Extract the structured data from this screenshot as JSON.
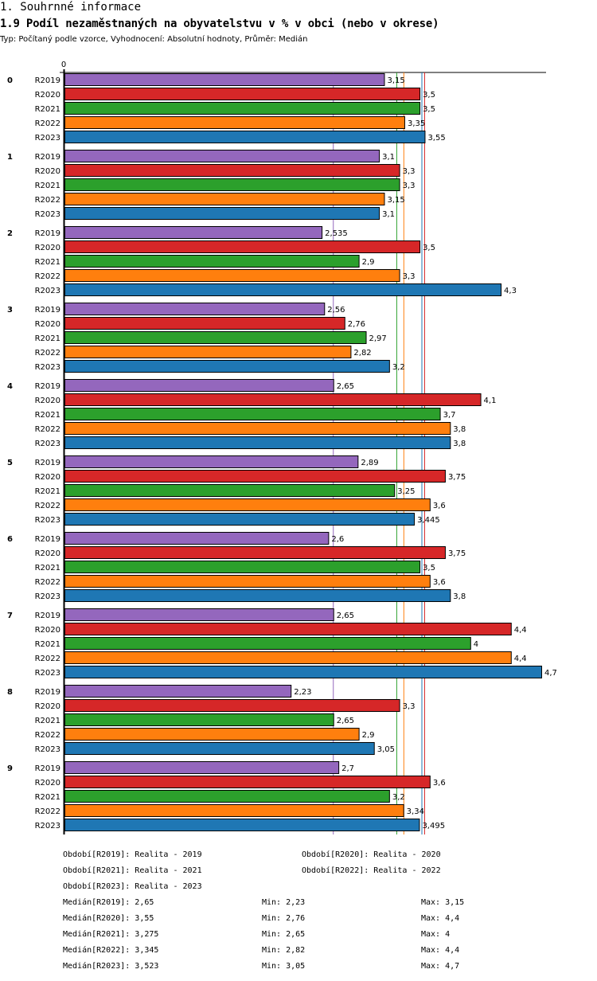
{
  "header": {
    "section_title": "1. Souhrnné informace",
    "chart_title": "1.9 Podíl nezaměstnaných na obyvatelstvu v % v obci (nebo v okrese)",
    "subtitle": "Typ: Počítaný podle vzorce, Vyhodnocení: Absolutní hodnoty, Průměr: Medián"
  },
  "chart_data": {
    "type": "bar",
    "orientation": "horizontal",
    "title": "1.9 Podíl nezaměstnaných na obyvatelstvu v % v obci (nebo v okrese)",
    "xlabel": "",
    "ylabel": "",
    "axis_zero_label": "0",
    "xlim": [
      0,
      4.7
    ],
    "grid": false,
    "categories": [
      "0",
      "1",
      "2",
      "3",
      "4",
      "5",
      "6",
      "7",
      "8",
      "9"
    ],
    "series": [
      {
        "name": "R2019",
        "color": "#9467bd",
        "values": [
          3.15,
          3.1,
          2.535,
          2.56,
          2.65,
          2.89,
          2.6,
          2.65,
          2.23,
          2.7
        ],
        "labels": [
          "3,15",
          "3,1",
          "2,535",
          "2,56",
          "2,65",
          "2,89",
          "2,6",
          "2,65",
          "2,23",
          "2,7"
        ]
      },
      {
        "name": "R2020",
        "color": "#d62728",
        "values": [
          3.5,
          3.3,
          3.5,
          2.76,
          4.1,
          3.75,
          3.75,
          4.4,
          3.3,
          3.6
        ],
        "labels": [
          "3,5",
          "3,3",
          "3,5",
          "2,76",
          "4,1",
          "3,75",
          "3,75",
          "4,4",
          "3,3",
          "3,6"
        ]
      },
      {
        "name": "R2021",
        "color": "#2ca02c",
        "values": [
          3.5,
          3.3,
          2.9,
          2.97,
          3.7,
          3.25,
          3.5,
          4,
          2.65,
          3.2
        ],
        "labels": [
          "3,5",
          "3,3",
          "2,9",
          "2,97",
          "3,7",
          "3,25",
          "3,5",
          "4",
          "2,65",
          "3,2"
        ]
      },
      {
        "name": "R2022",
        "color": "#ff7f0e",
        "values": [
          3.35,
          3.15,
          3.3,
          2.82,
          3.8,
          3.6,
          3.6,
          4.4,
          2.9,
          3.34
        ],
        "labels": [
          "3,35",
          "3,15",
          "3,3",
          "2,82",
          "3,8",
          "3,6",
          "3,6",
          "4,4",
          "2,9",
          "3,34"
        ]
      },
      {
        "name": "R2023",
        "color": "#1f77b4",
        "values": [
          3.55,
          3.1,
          4.3,
          3.2,
          3.8,
          3.445,
          3.8,
          4.7,
          3.05,
          3.495
        ],
        "labels": [
          "3,55",
          "3,1",
          "4,3",
          "3,2",
          "3,8",
          "3,445",
          "3,8",
          "4,7",
          "3,05",
          "3,495"
        ]
      }
    ],
    "median_lines": [
      {
        "series": "R2019",
        "value": 2.65,
        "color": "#9467bd"
      },
      {
        "series": "R2020",
        "value": 3.55,
        "color": "#d62728"
      },
      {
        "series": "R2021",
        "value": 3.275,
        "color": "#2ca02c"
      },
      {
        "series": "R2022",
        "value": 3.345,
        "color": "#ff7f0e"
      },
      {
        "series": "R2023",
        "value": 3.523,
        "color": "#1f77b4"
      }
    ]
  },
  "legend": {
    "periods": [
      "Období[R2019]: Realita - 2019",
      "Období[R2020]: Realita - 2020",
      "Období[R2021]: Realita - 2021",
      "Období[R2022]: Realita - 2022",
      "Období[R2023]: Realita - 2023"
    ],
    "stats": [
      {
        "median": "Medián[R2019]: 2,65",
        "min": "Min: 2,23",
        "max": "Max: 3,15"
      },
      {
        "median": "Medián[R2020]: 3,55",
        "min": "Min: 2,76",
        "max": "Max: 4,4"
      },
      {
        "median": "Medián[R2021]: 3,275",
        "min": "Min: 2,65",
        "max": "Max: 4"
      },
      {
        "median": "Medián[R2022]: 3,345",
        "min": "Min: 2,82",
        "max": "Max: 4,4"
      },
      {
        "median": "Medián[R2023]: 3,523",
        "min": "Min: 3,05",
        "max": "Max: 4,7"
      }
    ]
  }
}
